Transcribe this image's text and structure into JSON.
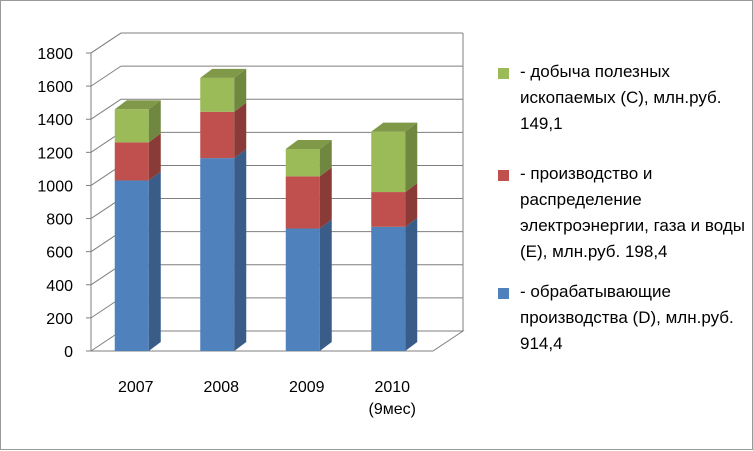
{
  "chart_data": {
    "type": "bar",
    "stacked": true,
    "style": "3d-column",
    "categories": [
      "2007",
      "2008",
      "2009",
      "2010\n(9мес)"
    ],
    "series": [
      {
        "name": "- обрабатывающие производства (D), млн.руб. 914,4",
        "color": "#4f81bd",
        "values": [
          1030,
          1165,
          740,
          750
        ]
      },
      {
        "name": "- производство и распределение электроэнергии, газа и воды (E), млн.руб. 198,4",
        "color": "#c0504d",
        "values": [
          230,
          280,
          315,
          210
        ]
      },
      {
        "name": "- добыча полезных ископаемых (C), млн.руб. 149,1",
        "color": "#9bbb59",
        "values": [
          200,
          205,
          165,
          365
        ]
      }
    ],
    "ylim": [
      0,
      1800
    ],
    "yticks": [
      0,
      200,
      400,
      600,
      800,
      1000,
      1200,
      1400,
      1600,
      1800
    ],
    "grid": true,
    "legend_position": "right",
    "legend_order": [
      2,
      1,
      0
    ]
  }
}
